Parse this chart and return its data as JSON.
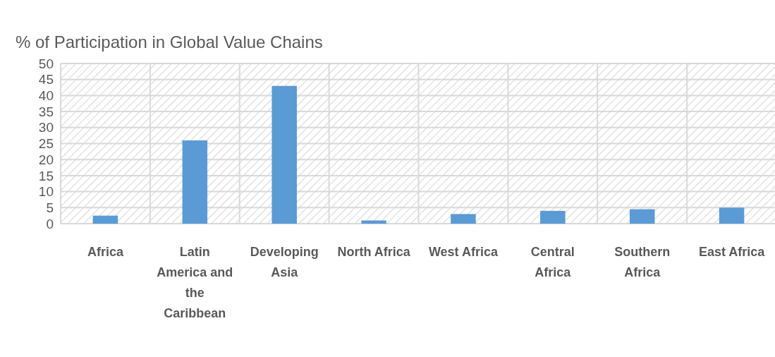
{
  "chart_data": {
    "type": "bar",
    "title": "% of Participation in Global Value Chains",
    "categories": [
      "Africa",
      "Latin America and the Caribbean",
      "Developing Asia",
      "North Africa",
      "West Africa",
      "Central Africa",
      "Southern Africa",
      "East Africa"
    ],
    "values": [
      2.5,
      26,
      43,
      1,
      3,
      4,
      4.5,
      5
    ],
    "color": "#5b9bd5",
    "ylim": [
      0,
      50
    ],
    "yticks": [
      0,
      5,
      10,
      15,
      20,
      25,
      30,
      35,
      40,
      45,
      50
    ],
    "grid": true
  }
}
